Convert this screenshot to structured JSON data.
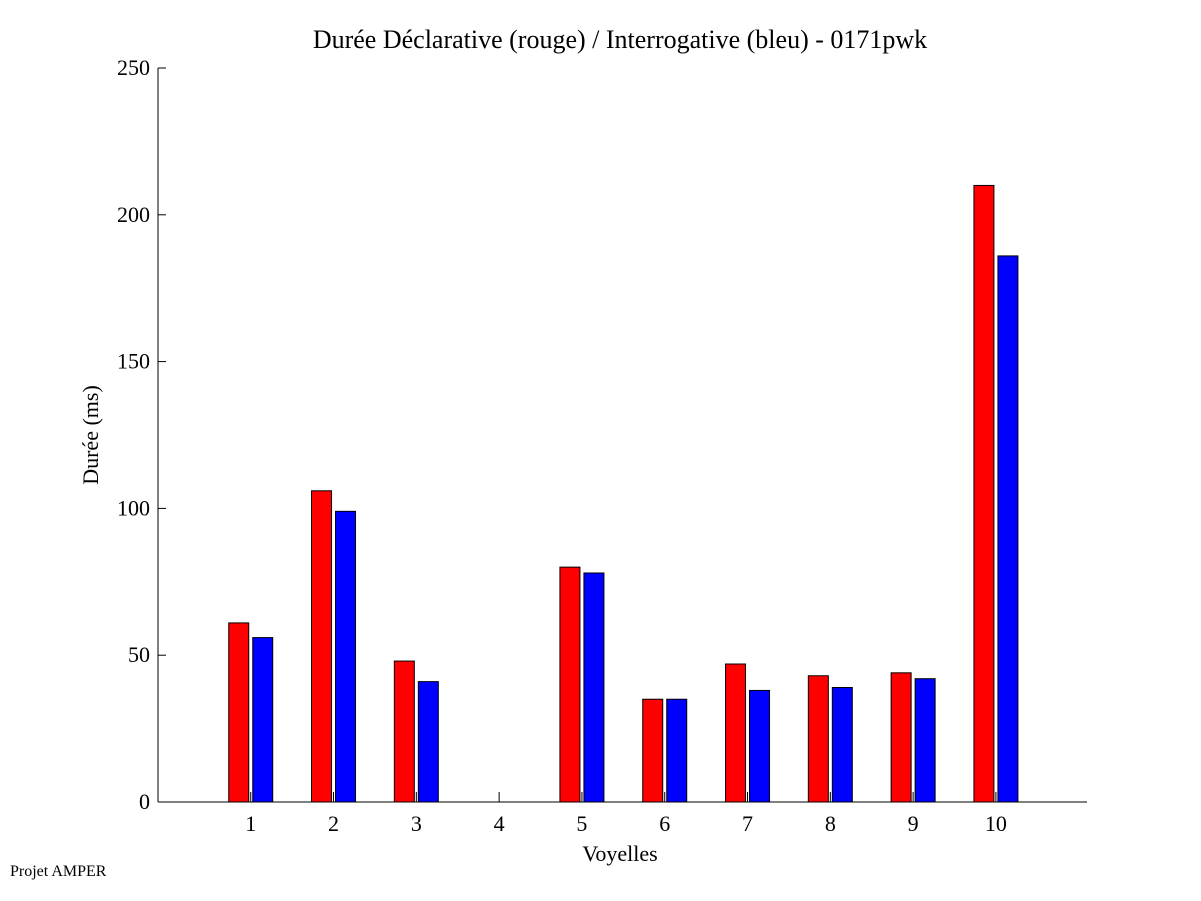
{
  "chart_data": {
    "type": "bar",
    "title": "Durée Déclarative (rouge) / Interrogative (bleu) - 0171pwk",
    "xlabel": "Voyelles",
    "ylabel": "Durée (ms)",
    "categories": [
      "1",
      "2",
      "3",
      "4",
      "5",
      "6",
      "7",
      "8",
      "9",
      "10"
    ],
    "ylim": [
      0,
      250
    ],
    "yticks": [
      0,
      50,
      100,
      150,
      200,
      250
    ],
    "grid": false,
    "series": [
      {
        "color": "#ff0000",
        "values": [
          61,
          106,
          48,
          0,
          80,
          35,
          47,
          43,
          44,
          210
        ]
      },
      {
        "color": "#0000ff",
        "values": [
          56,
          99,
          41,
          0,
          78,
          35,
          38,
          39,
          42,
          186
        ]
      }
    ]
  },
  "footer": "Projet AMPER"
}
